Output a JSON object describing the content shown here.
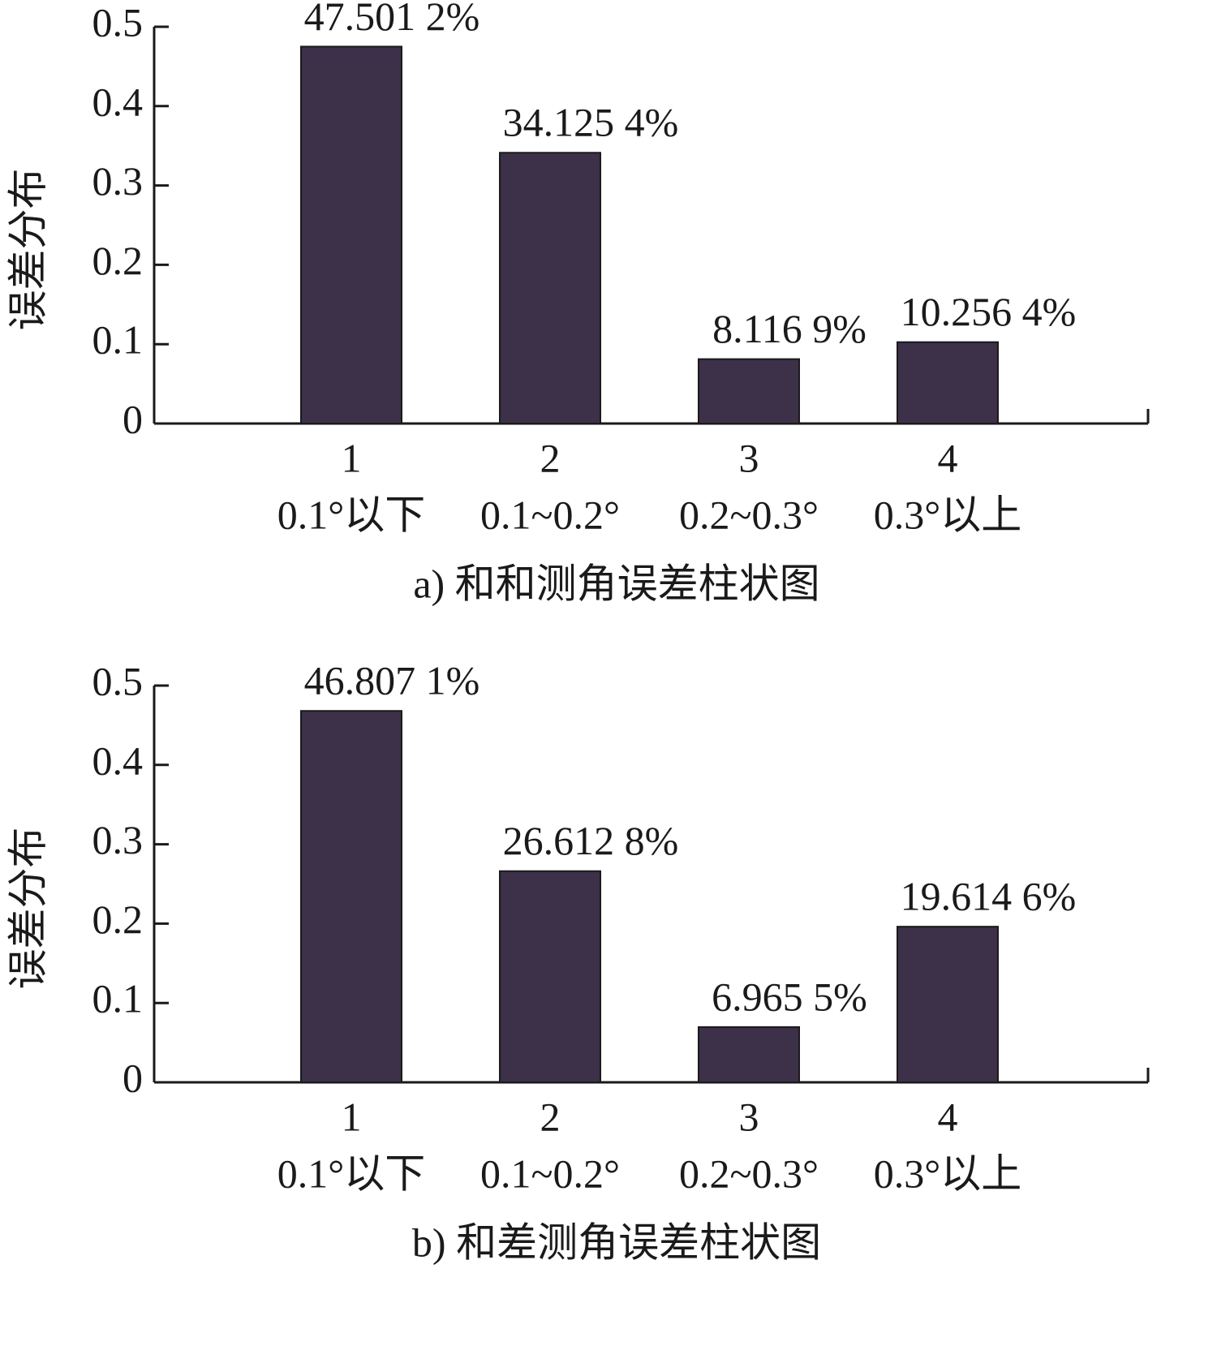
{
  "chart_data": [
    {
      "type": "bar",
      "title": "a) 和和测角误差柱状图",
      "y_label": "误差分布",
      "categories": [
        "1",
        "2",
        "3",
        "4"
      ],
      "category_details": [
        "0.1°以下",
        "0.1~0.2°",
        "0.2~0.3°",
        "0.3°以上"
      ],
      "values": [
        0.475012,
        0.341254,
        0.081169,
        0.102564
      ],
      "value_labels": [
        "47.501 2%",
        "34.125 4%",
        "8.116 9%",
        "10.256 4%"
      ],
      "color": "#3d3049",
      "ylim": [
        0,
        0.5
      ],
      "yticks": [
        0,
        0.1,
        0.2,
        0.3,
        0.4,
        0.5
      ]
    },
    {
      "type": "bar",
      "title": "b) 和差测角误差柱状图",
      "y_label": "误差分布",
      "categories": [
        "1",
        "2",
        "3",
        "4"
      ],
      "category_details": [
        "0.1°以下",
        "0.1~0.2°",
        "0.2~0.3°",
        "0.3°以上"
      ],
      "values": [
        0.468071,
        0.266128,
        0.069655,
        0.196146
      ],
      "value_labels": [
        "46.807 1%",
        "26.612 8%",
        "6.965 5%",
        "19.614 6%"
      ],
      "color": "#3d3049",
      "ylim": [
        0,
        0.5
      ],
      "yticks": [
        0,
        0.1,
        0.2,
        0.3,
        0.4,
        0.5
      ]
    }
  ]
}
